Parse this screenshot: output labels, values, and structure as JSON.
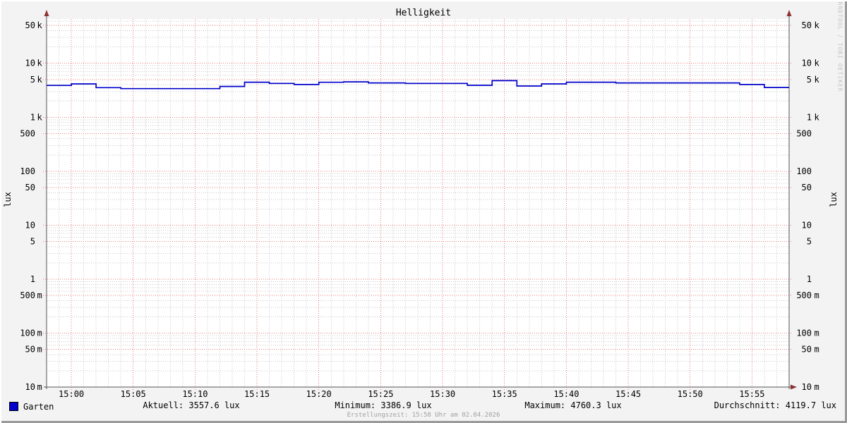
{
  "chart": {
    "title": "Helligkeit",
    "ylabel_left": "lux",
    "ylabel_right": "lux",
    "watermark": "RRDTOOL / TOBI OETIKER"
  },
  "chart_data": {
    "type": "line",
    "title": "Helligkeit",
    "ylabel": "lux",
    "y_scale": "log",
    "ylim": [
      0.01,
      66000
    ],
    "grid": true,
    "x_start": "14:58",
    "x_end": "15:58",
    "x_major_ticks": [
      "15:00",
      "15:05",
      "15:10",
      "15:15",
      "15:20",
      "15:25",
      "15:30",
      "15:35",
      "15:40",
      "15:45",
      "15:50",
      "15:55"
    ],
    "x_minor_step_min": 1,
    "y_ticks": [
      {
        "value": 50000,
        "num": "50",
        "suffix": "k"
      },
      {
        "value": 10000,
        "num": "10",
        "suffix": "k"
      },
      {
        "value": 5000,
        "num": "5",
        "suffix": "k"
      },
      {
        "value": 1000,
        "num": "1",
        "suffix": "k"
      },
      {
        "value": 500,
        "num": "500",
        "suffix": ""
      },
      {
        "value": 100,
        "num": "100",
        "suffix": ""
      },
      {
        "value": 50,
        "num": "50",
        "suffix": ""
      },
      {
        "value": 10,
        "num": "10",
        "suffix": ""
      },
      {
        "value": 5,
        "num": "5",
        "suffix": ""
      },
      {
        "value": 1,
        "num": "1",
        "suffix": ""
      },
      {
        "value": 0.5,
        "num": "500",
        "suffix": "m"
      },
      {
        "value": 0.1,
        "num": "100",
        "suffix": "m"
      },
      {
        "value": 0.05,
        "num": "50",
        "suffix": "m"
      },
      {
        "value": 0.01,
        "num": "10",
        "suffix": "m"
      }
    ],
    "series": [
      {
        "name": "Garten",
        "color": "#0000cc",
        "unit": "lux",
        "points": [
          [
            "14:58",
            3880
          ],
          [
            "15:00",
            4150
          ],
          [
            "15:02",
            3540
          ],
          [
            "15:04",
            3390
          ],
          [
            "15:12",
            3720
          ],
          [
            "15:14",
            4460
          ],
          [
            "15:16",
            4230
          ],
          [
            "15:18",
            4030
          ],
          [
            "15:20",
            4440
          ],
          [
            "15:22",
            4520
          ],
          [
            "15:24",
            4330
          ],
          [
            "15:27",
            4230
          ],
          [
            "15:32",
            3900
          ],
          [
            "15:34",
            4760
          ],
          [
            "15:36",
            3790
          ],
          [
            "15:38",
            4150
          ],
          [
            "15:40",
            4460
          ],
          [
            "15:44",
            4330
          ],
          [
            "15:54",
            4030
          ],
          [
            "15:56",
            3560
          ]
        ]
      }
    ],
    "stats": {
      "aktuell": 3557.6,
      "minimum": 3386.9,
      "maximum": 4760.3,
      "durchschnitt": 4119.7
    }
  },
  "legend": {
    "items": [
      {
        "label": "Garten",
        "color": "#0000cc"
      }
    ]
  },
  "stats_row": {
    "aktuell": "Aktuell: 3557.6 lux",
    "minimum": "Minimum: 3386.9 lux",
    "maximum": "Maximum: 4760.3 lux",
    "durchschnitt": "Durchschnitt: 4119.7 lux"
  },
  "footer": {
    "text": "Erstellungszeit: 15:58 Uhr am 02.04.2026"
  },
  "colors": {
    "background": "#f3f3f3",
    "canvas": "#ffffff",
    "major_grid": "#e87d7d",
    "minor_grid": "#c9c9c9",
    "axis": "#555555",
    "arrow": "#8b3434",
    "series": "#0000cc",
    "text": "#000000"
  }
}
